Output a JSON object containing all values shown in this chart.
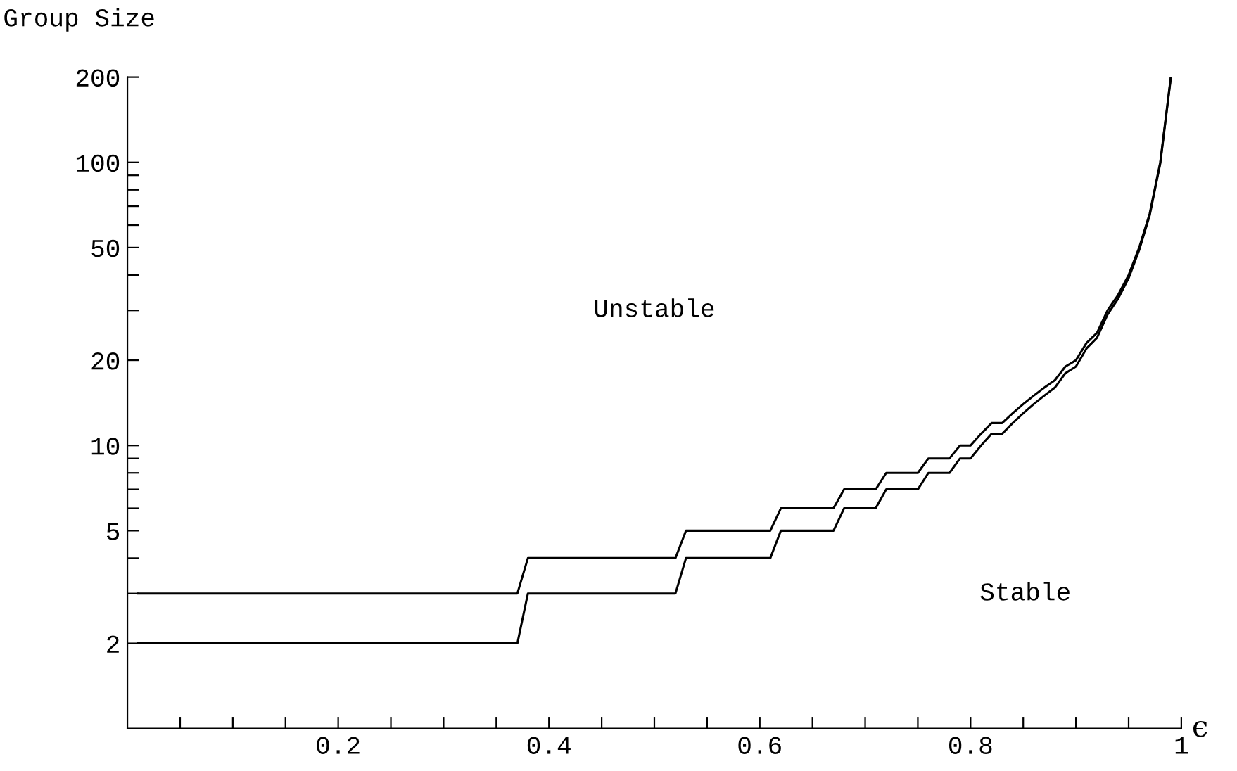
{
  "chart_data": {
    "type": "line",
    "xlabel": "ϵ",
    "ylabel": "Group Size",
    "x": [
      0.01,
      0.37,
      0.38,
      0.52,
      0.53,
      0.61,
      0.62,
      0.67,
      0.68,
      0.71,
      0.72,
      0.75,
      0.76,
      0.78,
      0.79,
      0.8,
      0.81,
      0.82,
      0.83,
      0.84,
      0.85,
      0.86,
      0.87,
      0.88,
      0.89,
      0.9,
      0.91,
      0.92,
      0.93,
      0.94,
      0.95,
      0.96,
      0.97,
      0.98,
      0.99
    ],
    "series": [
      {
        "color": "#000000",
        "values": [
          3,
          3,
          4,
          4,
          5,
          5,
          6,
          6,
          7,
          7,
          8,
          8,
          9,
          9,
          10,
          10,
          11,
          12,
          12,
          13,
          14,
          15,
          16,
          17,
          19,
          20,
          23,
          25,
          30,
          34,
          40,
          50,
          66,
          100,
          200
        ]
      },
      {
        "color": "#000000",
        "values": [
          2,
          2,
          3,
          3,
          4,
          4,
          5,
          5,
          6,
          6,
          7,
          7,
          8,
          8,
          9,
          9,
          10,
          11,
          11,
          12,
          13,
          14,
          15,
          16,
          18,
          19,
          22,
          24,
          29,
          33,
          39,
          49,
          65,
          99,
          198
        ]
      }
    ],
    "log": "y",
    "xlim": [
      0,
      1
    ],
    "xticks": [
      {
        "value": 0.05,
        "label": null
      },
      {
        "value": 0.1,
        "label": null
      },
      {
        "value": 0.15,
        "label": null
      },
      0.2,
      {
        "value": 0.25,
        "label": null
      },
      {
        "value": 0.3,
        "label": null
      },
      {
        "value": 0.35,
        "label": null
      },
      0.4,
      {
        "value": 0.45,
        "label": null
      },
      {
        "value": 0.5,
        "label": null
      },
      {
        "value": 0.55,
        "label": null
      },
      0.6,
      {
        "value": 0.65,
        "label": null
      },
      {
        "value": 0.7,
        "label": null
      },
      {
        "value": 0.75,
        "label": null
      },
      0.8,
      {
        "value": 0.85,
        "label": null
      },
      {
        "value": 0.9,
        "label": null
      },
      {
        "value": 0.95,
        "label": null
      },
      {
        "value": 1,
        "label": "1"
      }
    ],
    "ylim": [
      1,
      200
    ],
    "yticks": [
      2,
      {
        "value": 3,
        "label": null
      },
      {
        "value": 4,
        "label": null
      },
      5,
      {
        "value": 6,
        "label": null
      },
      {
        "value": 7,
        "label": null
      },
      {
        "value": 8,
        "label": null
      },
      {
        "value": 9,
        "label": null
      },
      10,
      20,
      {
        "value": 30,
        "label": null
      },
      {
        "value": 40,
        "label": null
      },
      50,
      {
        "value": 60,
        "label": null
      },
      {
        "value": 70,
        "label": null
      },
      {
        "value": 80,
        "label": null
      },
      {
        "value": 90,
        "label": null
      },
      100,
      200
    ],
    "annotations": [
      "Unstable",
      "Stable"
    ],
    "grid": false,
    "legend": false,
    "marker": "none",
    "line_style": "solid"
  }
}
